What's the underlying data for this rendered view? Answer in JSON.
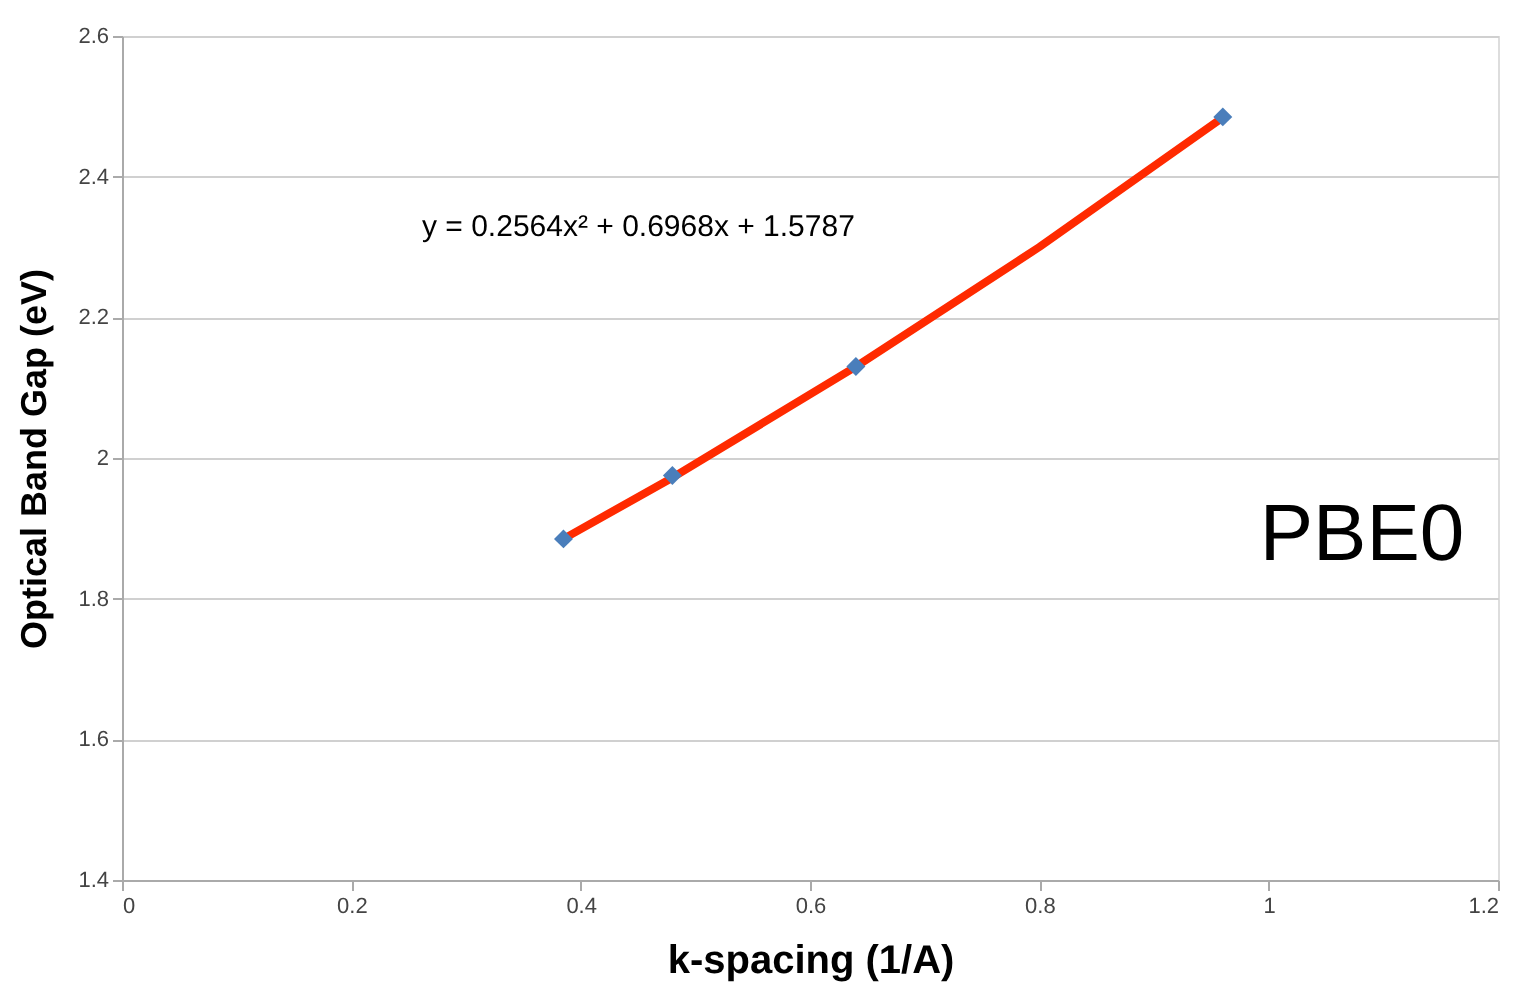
{
  "chart_data": {
    "type": "scatter",
    "xlabel": "k-spacing (1/A)",
    "ylabel": "Optical Band Gap (eV)",
    "xlim": [
      0,
      1.2
    ],
    "xticks": [
      0,
      0.2,
      0.4,
      0.6,
      0.8,
      1,
      1.2
    ],
    "ylim": [
      1.4,
      2.6
    ],
    "yticks": [
      1.4,
      1.6,
      1.8,
      2,
      2.2,
      2.4,
      2.6
    ],
    "grid": "y",
    "x": [
      0.385,
      0.48,
      0.64,
      0.96
    ],
    "series": [
      {
        "type": "line",
        "color": "#ff2a00",
        "line_style": "solid",
        "marker": "none",
        "x": [
          0.385,
          0.48,
          0.64,
          0.8,
          0.96
        ],
        "values": [
          1.885,
          1.972,
          2.13,
          2.3,
          2.484
        ]
      },
      {
        "color": "#4a7ebb",
        "marker": "diamond",
        "values": [
          1.885,
          1.975,
          2.13,
          2.485
        ]
      }
    ],
    "annotations": [
      "y = 0.2564x² + 0.6968x + 1.5787",
      "PBE0"
    ]
  }
}
